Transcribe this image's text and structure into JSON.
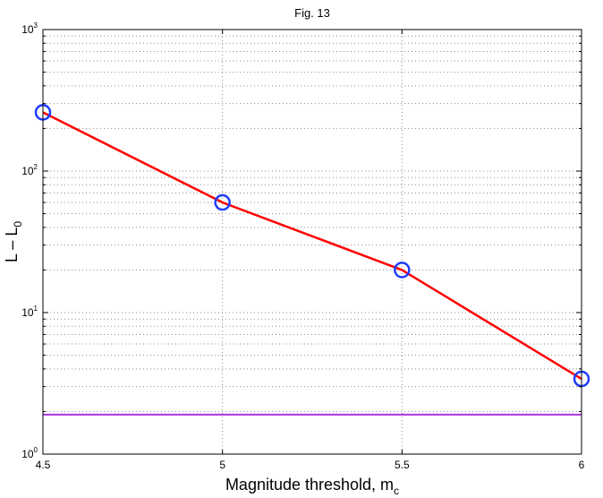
{
  "chart_data": {
    "type": "line",
    "title": "Fig. 13",
    "xlabel": {
      "base": "Magnitude threshold, m",
      "subscript": "c"
    },
    "ylabel": {
      "base": "L – L",
      "subscript": "0"
    },
    "x": [
      4.5,
      5,
      5.5,
      6
    ],
    "xlim": [
      4.5,
      6
    ],
    "xticks": [
      "4.5",
      "5",
      "5.5",
      "6"
    ],
    "y_scale": "log",
    "ylim": [
      1,
      1000
    ],
    "yticks": [
      {
        "base": "10",
        "exp": "0"
      },
      {
        "base": "10",
        "exp": "1"
      },
      {
        "base": "10",
        "exp": "2"
      },
      {
        "base": "10",
        "exp": "3"
      }
    ],
    "grid": true,
    "series": [
      {
        "values": [
          260,
          60,
          20,
          3.4
        ],
        "color": "#ff0000",
        "marker": "circle",
        "marker_color": "#1f3cff"
      }
    ],
    "reference_lines": [
      {
        "y": 1.9,
        "color": "#b040e0"
      }
    ]
  }
}
